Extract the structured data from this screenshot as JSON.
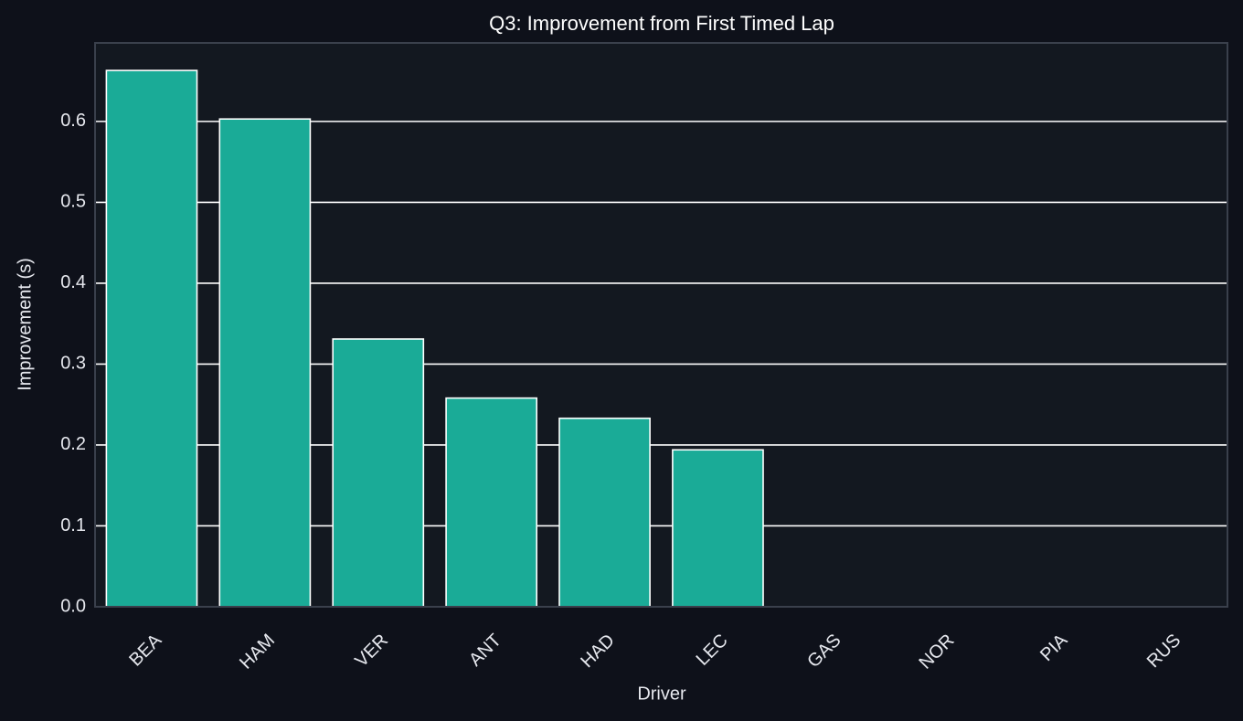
{
  "chart_data": {
    "type": "bar",
    "title": "Q3: Improvement from First Timed Lap",
    "x_label": "Driver",
    "y_label": "Improvement (s)",
    "categories": [
      "BEA",
      "HAM",
      "VER",
      "ANT",
      "HAD",
      "LEC",
      "GAS",
      "NOR",
      "PIA",
      "RUS"
    ],
    "values": [
      0.663,
      0.603,
      0.331,
      0.258,
      0.233,
      0.194,
      0,
      0,
      0,
      0
    ],
    "color": "#1aab97",
    "ylim": [
      0,
      0.697
    ],
    "yticks": [
      {
        "value": 0,
        "label": "0.0"
      },
      0.1,
      0.2,
      0.3,
      0.4,
      0.5,
      0.6
    ],
    "grid": true
  }
}
